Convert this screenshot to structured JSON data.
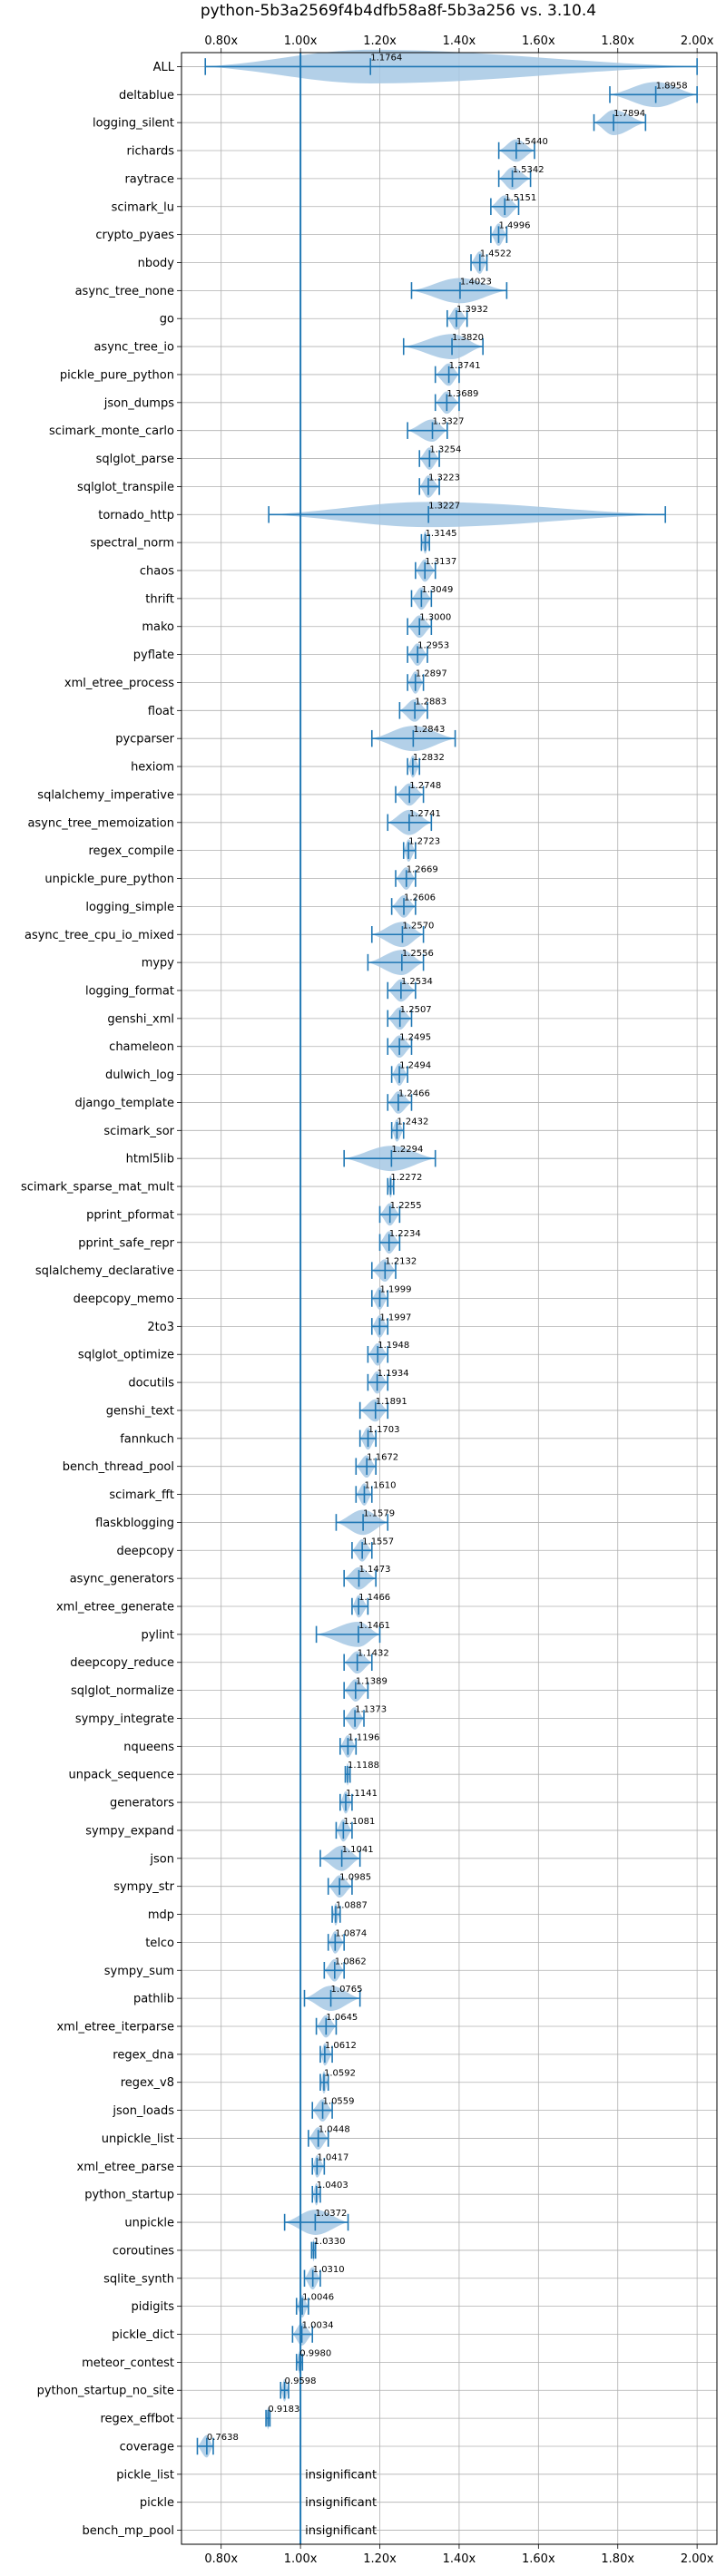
{
  "chart_data": {
    "type": "violin",
    "title": "python-5b3a2569f4b4dfb58a8f-5b3a256 vs. 3.10.4",
    "xlim": [
      0.7,
      2.05
    ],
    "x_ticks": [
      0.8,
      1.0,
      1.2,
      1.4,
      1.6,
      1.8,
      2.0
    ],
    "x_tick_labels": [
      "0.80x",
      "1.00x",
      "1.20x",
      "1.40x",
      "1.60x",
      "1.80x",
      "2.00x"
    ],
    "reference_line": 1.0,
    "grid": true,
    "colors": {
      "violin": "#a6c8e4",
      "line": "#1f77b4"
    },
    "rows": [
      {
        "name": "ALL",
        "value": 1.1764,
        "label": "1.1764",
        "min": 0.76,
        "max": 2.0,
        "width": 0.6
      },
      {
        "name": "deltablue",
        "value": 1.8958,
        "label": "1.8958",
        "min": 1.78,
        "max": 2.0,
        "width": 0.45
      },
      {
        "name": "logging_silent",
        "value": 1.7894,
        "label": "1.7894",
        "min": 1.74,
        "max": 1.87,
        "width": 0.45
      },
      {
        "name": "richards",
        "value": 1.544,
        "label": "1.5440",
        "min": 1.5,
        "max": 1.59,
        "width": 0.4
      },
      {
        "name": "raytrace",
        "value": 1.5342,
        "label": "1.5342",
        "min": 1.5,
        "max": 1.58,
        "width": 0.4
      },
      {
        "name": "scimark_lu",
        "value": 1.5151,
        "label": "1.5151",
        "min": 1.48,
        "max": 1.55,
        "width": 0.4
      },
      {
        "name": "crypto_pyaes",
        "value": 1.4996,
        "label": "1.4996",
        "min": 1.48,
        "max": 1.52,
        "width": 0.4
      },
      {
        "name": "nbody",
        "value": 1.4522,
        "label": "1.4522",
        "min": 1.43,
        "max": 1.47,
        "width": 0.4
      },
      {
        "name": "async_tree_none",
        "value": 1.4023,
        "label": "1.4023",
        "min": 1.28,
        "max": 1.52,
        "width": 0.45
      },
      {
        "name": "go",
        "value": 1.3932,
        "label": "1.3932",
        "min": 1.37,
        "max": 1.42,
        "width": 0.4
      },
      {
        "name": "async_tree_io",
        "value": 1.382,
        "label": "1.3820",
        "min": 1.26,
        "max": 1.46,
        "width": 0.45
      },
      {
        "name": "pickle_pure_python",
        "value": 1.3741,
        "label": "1.3741",
        "min": 1.34,
        "max": 1.4,
        "width": 0.4
      },
      {
        "name": "json_dumps",
        "value": 1.3689,
        "label": "1.3689",
        "min": 1.34,
        "max": 1.4,
        "width": 0.4
      },
      {
        "name": "scimark_monte_carlo",
        "value": 1.3327,
        "label": "1.3327",
        "min": 1.27,
        "max": 1.37,
        "width": 0.4
      },
      {
        "name": "sqlglot_parse",
        "value": 1.3254,
        "label": "1.3254",
        "min": 1.3,
        "max": 1.35,
        "width": 0.4
      },
      {
        "name": "sqlglot_transpile",
        "value": 1.3223,
        "label": "1.3223",
        "min": 1.3,
        "max": 1.35,
        "width": 0.4
      },
      {
        "name": "tornado_http",
        "value": 1.3227,
        "label": "1.3227",
        "min": 0.92,
        "max": 1.92,
        "width": 0.45
      },
      {
        "name": "spectral_norm",
        "value": 1.3145,
        "label": "1.3145",
        "min": 1.305,
        "max": 1.325,
        "width": 0.4
      },
      {
        "name": "chaos",
        "value": 1.3137,
        "label": "1.3137",
        "min": 1.29,
        "max": 1.34,
        "width": 0.4
      },
      {
        "name": "thrift",
        "value": 1.3049,
        "label": "1.3049",
        "min": 1.28,
        "max": 1.33,
        "width": 0.4
      },
      {
        "name": "mako",
        "value": 1.3,
        "label": "1.3000",
        "min": 1.27,
        "max": 1.33,
        "width": 0.4
      },
      {
        "name": "pyflate",
        "value": 1.2953,
        "label": "1.2953",
        "min": 1.27,
        "max": 1.32,
        "width": 0.4
      },
      {
        "name": "xml_etree_process",
        "value": 1.2897,
        "label": "1.2897",
        "min": 1.27,
        "max": 1.31,
        "width": 0.4
      },
      {
        "name": "float",
        "value": 1.2883,
        "label": "1.2883",
        "min": 1.25,
        "max": 1.32,
        "width": 0.4
      },
      {
        "name": "pycparser",
        "value": 1.2843,
        "label": "1.2843",
        "min": 1.18,
        "max": 1.39,
        "width": 0.45
      },
      {
        "name": "hexiom",
        "value": 1.2832,
        "label": "1.2832",
        "min": 1.27,
        "max": 1.3,
        "width": 0.4
      },
      {
        "name": "sqlalchemy_imperative",
        "value": 1.2748,
        "label": "1.2748",
        "min": 1.24,
        "max": 1.31,
        "width": 0.4
      },
      {
        "name": "async_tree_memoization",
        "value": 1.2741,
        "label": "1.2741",
        "min": 1.22,
        "max": 1.33,
        "width": 0.45
      },
      {
        "name": "regex_compile",
        "value": 1.2723,
        "label": "1.2723",
        "min": 1.26,
        "max": 1.29,
        "width": 0.4
      },
      {
        "name": "unpickle_pure_python",
        "value": 1.2669,
        "label": "1.2669",
        "min": 1.24,
        "max": 1.29,
        "width": 0.4
      },
      {
        "name": "logging_simple",
        "value": 1.2606,
        "label": "1.2606",
        "min": 1.23,
        "max": 1.29,
        "width": 0.4
      },
      {
        "name": "async_tree_cpu_io_mixed",
        "value": 1.257,
        "label": "1.2570",
        "min": 1.18,
        "max": 1.31,
        "width": 0.45
      },
      {
        "name": "mypy",
        "value": 1.2556,
        "label": "1.2556",
        "min": 1.17,
        "max": 1.31,
        "width": 0.45
      },
      {
        "name": "logging_format",
        "value": 1.2534,
        "label": "1.2534",
        "min": 1.22,
        "max": 1.29,
        "width": 0.4
      },
      {
        "name": "genshi_xml",
        "value": 1.2507,
        "label": "1.2507",
        "min": 1.22,
        "max": 1.28,
        "width": 0.4
      },
      {
        "name": "chameleon",
        "value": 1.2495,
        "label": "1.2495",
        "min": 1.22,
        "max": 1.28,
        "width": 0.4
      },
      {
        "name": "dulwich_log",
        "value": 1.2494,
        "label": "1.2494",
        "min": 1.23,
        "max": 1.27,
        "width": 0.4
      },
      {
        "name": "django_template",
        "value": 1.2466,
        "label": "1.2466",
        "min": 1.22,
        "max": 1.28,
        "width": 0.4
      },
      {
        "name": "scimark_sor",
        "value": 1.2432,
        "label": "1.2432",
        "min": 1.23,
        "max": 1.26,
        "width": 0.4
      },
      {
        "name": "html5lib",
        "value": 1.2294,
        "label": "1.2294",
        "min": 1.11,
        "max": 1.34,
        "width": 0.45
      },
      {
        "name": "scimark_sparse_mat_mult",
        "value": 1.2272,
        "label": "1.2272",
        "min": 1.22,
        "max": 1.235,
        "width": 0.4
      },
      {
        "name": "pprint_pformat",
        "value": 1.2255,
        "label": "1.2255",
        "min": 1.2,
        "max": 1.25,
        "width": 0.4
      },
      {
        "name": "pprint_safe_repr",
        "value": 1.2234,
        "label": "1.2234",
        "min": 1.2,
        "max": 1.25,
        "width": 0.4
      },
      {
        "name": "sqlalchemy_declarative",
        "value": 1.2132,
        "label": "1.2132",
        "min": 1.18,
        "max": 1.24,
        "width": 0.4
      },
      {
        "name": "deepcopy_memo",
        "value": 1.1999,
        "label": "1.1999",
        "min": 1.18,
        "max": 1.22,
        "width": 0.4
      },
      {
        "name": "2to3",
        "value": 1.1997,
        "label": "1.1997",
        "min": 1.18,
        "max": 1.22,
        "width": 0.4
      },
      {
        "name": "sqlglot_optimize",
        "value": 1.1948,
        "label": "1.1948",
        "min": 1.17,
        "max": 1.22,
        "width": 0.4
      },
      {
        "name": "docutils",
        "value": 1.1934,
        "label": "1.1934",
        "min": 1.17,
        "max": 1.22,
        "width": 0.4
      },
      {
        "name": "genshi_text",
        "value": 1.1891,
        "label": "1.1891",
        "min": 1.15,
        "max": 1.22,
        "width": 0.4
      },
      {
        "name": "fannkuch",
        "value": 1.1703,
        "label": "1.1703",
        "min": 1.15,
        "max": 1.19,
        "width": 0.4
      },
      {
        "name": "bench_thread_pool",
        "value": 1.1672,
        "label": "1.1672",
        "min": 1.14,
        "max": 1.19,
        "width": 0.4
      },
      {
        "name": "scimark_fft",
        "value": 1.161,
        "label": "1.1610",
        "min": 1.14,
        "max": 1.18,
        "width": 0.4
      },
      {
        "name": "flaskblogging",
        "value": 1.1579,
        "label": "1.1579",
        "min": 1.09,
        "max": 1.22,
        "width": 0.45
      },
      {
        "name": "deepcopy",
        "value": 1.1557,
        "label": "1.1557",
        "min": 1.13,
        "max": 1.18,
        "width": 0.4
      },
      {
        "name": "async_generators",
        "value": 1.1473,
        "label": "1.1473",
        "min": 1.11,
        "max": 1.19,
        "width": 0.4
      },
      {
        "name": "xml_etree_generate",
        "value": 1.1466,
        "label": "1.1466",
        "min": 1.13,
        "max": 1.17,
        "width": 0.4
      },
      {
        "name": "pylint",
        "value": 1.1461,
        "label": "1.1461",
        "min": 1.04,
        "max": 1.2,
        "width": 0.45
      },
      {
        "name": "deepcopy_reduce",
        "value": 1.1432,
        "label": "1.1432",
        "min": 1.11,
        "max": 1.18,
        "width": 0.4
      },
      {
        "name": "sqlglot_normalize",
        "value": 1.1389,
        "label": "1.1389",
        "min": 1.11,
        "max": 1.17,
        "width": 0.4
      },
      {
        "name": "sympy_integrate",
        "value": 1.1373,
        "label": "1.1373",
        "min": 1.11,
        "max": 1.16,
        "width": 0.4
      },
      {
        "name": "nqueens",
        "value": 1.1196,
        "label": "1.1196",
        "min": 1.1,
        "max": 1.14,
        "width": 0.4
      },
      {
        "name": "unpack_sequence",
        "value": 1.1188,
        "label": "1.1188",
        "min": 1.113,
        "max": 1.125,
        "width": 0.4
      },
      {
        "name": "generators",
        "value": 1.1141,
        "label": "1.1141",
        "min": 1.1,
        "max": 1.13,
        "width": 0.4
      },
      {
        "name": "sympy_expand",
        "value": 1.1081,
        "label": "1.1081",
        "min": 1.09,
        "max": 1.13,
        "width": 0.4
      },
      {
        "name": "json",
        "value": 1.1041,
        "label": "1.1041",
        "min": 1.05,
        "max": 1.15,
        "width": 0.45
      },
      {
        "name": "sympy_str",
        "value": 1.0985,
        "label": "1.0985",
        "min": 1.07,
        "max": 1.13,
        "width": 0.4
      },
      {
        "name": "mdp",
        "value": 1.0887,
        "label": "1.0887",
        "min": 1.08,
        "max": 1.1,
        "width": 0.4
      },
      {
        "name": "telco",
        "value": 1.0874,
        "label": "1.0874",
        "min": 1.07,
        "max": 1.11,
        "width": 0.4
      },
      {
        "name": "sympy_sum",
        "value": 1.0862,
        "label": "1.0862",
        "min": 1.06,
        "max": 1.11,
        "width": 0.4
      },
      {
        "name": "pathlib",
        "value": 1.0765,
        "label": "1.0765",
        "min": 1.01,
        "max": 1.15,
        "width": 0.45
      },
      {
        "name": "xml_etree_iterparse",
        "value": 1.0645,
        "label": "1.0645",
        "min": 1.04,
        "max": 1.09,
        "width": 0.4
      },
      {
        "name": "regex_dna",
        "value": 1.0612,
        "label": "1.0612",
        "min": 1.05,
        "max": 1.08,
        "width": 0.4
      },
      {
        "name": "regex_v8",
        "value": 1.0592,
        "label": "1.0592",
        "min": 1.05,
        "max": 1.07,
        "width": 0.4
      },
      {
        "name": "json_loads",
        "value": 1.0559,
        "label": "1.0559",
        "min": 1.03,
        "max": 1.08,
        "width": 0.4
      },
      {
        "name": "unpickle_list",
        "value": 1.0448,
        "label": "1.0448",
        "min": 1.02,
        "max": 1.07,
        "width": 0.4
      },
      {
        "name": "xml_etree_parse",
        "value": 1.0417,
        "label": "1.0417",
        "min": 1.03,
        "max": 1.06,
        "width": 0.4
      },
      {
        "name": "python_startup",
        "value": 1.0403,
        "label": "1.0403",
        "min": 1.03,
        "max": 1.05,
        "width": 0.4
      },
      {
        "name": "unpickle",
        "value": 1.0372,
        "label": "1.0372",
        "min": 0.96,
        "max": 1.12,
        "width": 0.45
      },
      {
        "name": "coroutines",
        "value": 1.033,
        "label": "1.0330",
        "min": 1.028,
        "max": 1.038,
        "width": 0.4
      },
      {
        "name": "sqlite_synth",
        "value": 1.031,
        "label": "1.0310",
        "min": 1.01,
        "max": 1.05,
        "width": 0.4
      },
      {
        "name": "pidigits",
        "value": 1.0046,
        "label": "1.0046",
        "min": 0.99,
        "max": 1.02,
        "width": 0.4
      },
      {
        "name": "pickle_dict",
        "value": 1.0034,
        "label": "1.0034",
        "min": 0.98,
        "max": 1.03,
        "width": 0.4
      },
      {
        "name": "meteor_contest",
        "value": 0.998,
        "label": "0.9980",
        "min": 0.99,
        "max": 1.005,
        "width": 0.4
      },
      {
        "name": "python_startup_no_site",
        "value": 0.9598,
        "label": "0.9598",
        "min": 0.95,
        "max": 0.97,
        "width": 0.4
      },
      {
        "name": "regex_effbot",
        "value": 0.9183,
        "label": "0.9183",
        "min": 0.913,
        "max": 0.923,
        "width": 0.4
      },
      {
        "name": "coverage",
        "value": 0.7638,
        "label": "0.7638",
        "min": 0.74,
        "max": 0.78,
        "width": 0.4
      },
      {
        "name": "pickle_list",
        "value": null,
        "label": "insignificant"
      },
      {
        "name": "pickle",
        "value": null,
        "label": "insignificant"
      },
      {
        "name": "bench_mp_pool",
        "value": null,
        "label": "insignificant"
      }
    ]
  }
}
